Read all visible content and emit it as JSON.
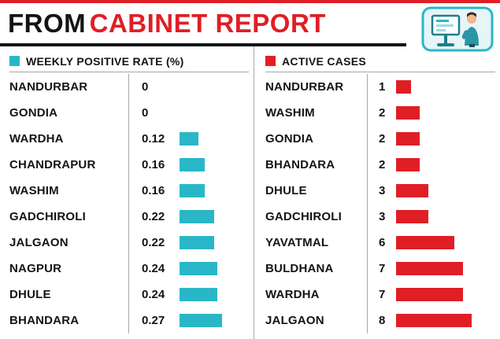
{
  "header": {
    "title_prefix": "FROM",
    "title_main": "CABINET REPORT"
  },
  "colors": {
    "red": "#e01e26",
    "cyan": "#29b7c8",
    "text": "#141414"
  },
  "icons": {
    "illustration": "person-at-presentation-screen-icon"
  },
  "chart_data": [
    {
      "type": "bar",
      "orientation": "horizontal",
      "title": "WEEKLY POSITIVE RATE (%)",
      "legend_color": "#29b7c8",
      "categories": [
        "NANDURBAR",
        "GONDIA",
        "WARDHA",
        "CHANDRAPUR",
        "WASHIM",
        "GADCHIROLI",
        "JALGAON",
        "NAGPUR",
        "DHULE",
        "BHANDARA"
      ],
      "values": [
        0,
        0,
        0.12,
        0.16,
        0.16,
        0.22,
        0.22,
        0.24,
        0.24,
        0.27
      ],
      "value_range": [
        0,
        0.27
      ],
      "grid": false,
      "legend_position": "header"
    },
    {
      "type": "bar",
      "orientation": "horizontal",
      "title": "ACTIVE CASES",
      "legend_color": "#e01e26",
      "categories": [
        "NANDURBAR",
        "WASHIM",
        "GONDIA",
        "BHANDARA",
        "DHULE",
        "GADCHIROLI",
        "YAVATMAL",
        "BULDHANA",
        "WARDHA",
        "JALGAON"
      ],
      "values": [
        1,
        2,
        2,
        2,
        3,
        3,
        6,
        7,
        7,
        8
      ],
      "value_range": [
        0,
        8
      ],
      "grid": false,
      "legend_position": "header"
    }
  ]
}
